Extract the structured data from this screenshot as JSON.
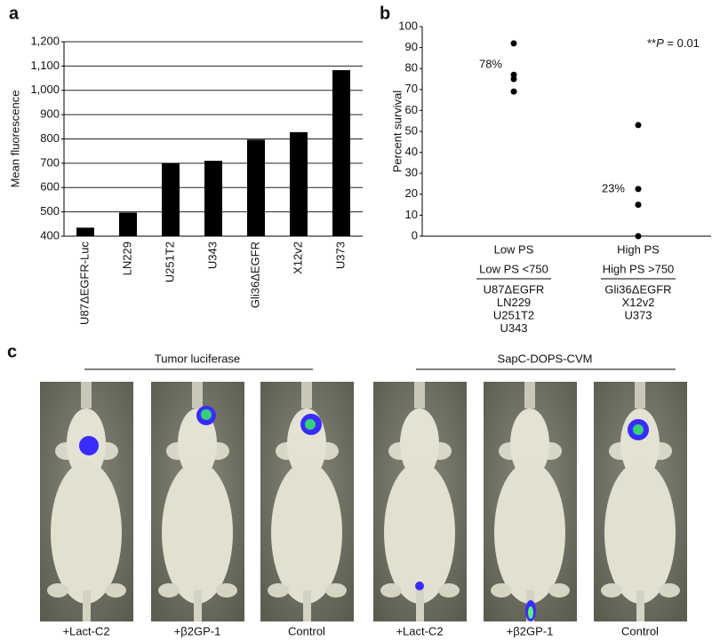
{
  "panels": {
    "a": "a",
    "b": "b",
    "c": "c"
  },
  "chart_data": [
    {
      "type": "bar",
      "ylabel": "Mean fluorescence",
      "categories": [
        "U87ΔEGFR-Luc",
        "LN229",
        "U251T2",
        "U343",
        "Gli36ΔEGFR",
        "X12v2",
        "U373"
      ],
      "values": [
        435,
        497,
        700,
        710,
        797,
        828,
        1083
      ],
      "color": "#000000",
      "ylim": [
        400,
        1200
      ],
      "yticks": [
        400,
        500,
        600,
        700,
        800,
        900,
        {
          "value": 1000,
          "label": "1,000"
        },
        {
          "value": 1100,
          "label": "1,100"
        },
        {
          "value": 1200,
          "label": "1,200"
        }
      ],
      "grid": true
    },
    {
      "type": "scatter",
      "ylabel": "Percent survival",
      "categories": [
        "Low PS",
        "High PS"
      ],
      "values": [
        [
          92,
          77,
          75,
          69
        ],
        [
          53,
          22.5,
          15,
          0
        ]
      ],
      "color": "#000000",
      "ylim": [
        0,
        100
      ],
      "yticks": [
        0,
        10,
        20,
        30,
        40,
        50,
        60,
        70,
        80,
        90,
        100
      ],
      "group_labels": [
        "78%",
        "23%"
      ],
      "p_annotation": {
        "stars": "**",
        "symbol": "P",
        "value": " = 0.01"
      },
      "groups": [
        {
          "title": "Low PS <750",
          "members": [
            "U87ΔEGFR",
            "LN229",
            "U251T2",
            "U343"
          ]
        },
        {
          "title": "High PS >750",
          "members": [
            "Gli36ΔEGFR",
            "X12v2",
            "U373"
          ]
        }
      ]
    }
  ],
  "imaging": {
    "groups": [
      "Tumor luciferase",
      "SapC-DOPS-CVM"
    ],
    "captions": [
      "+Lact-C2",
      "+β2GP-1",
      "Control",
      "+Lact-C2",
      "+β2GP-1",
      "Control"
    ]
  }
}
